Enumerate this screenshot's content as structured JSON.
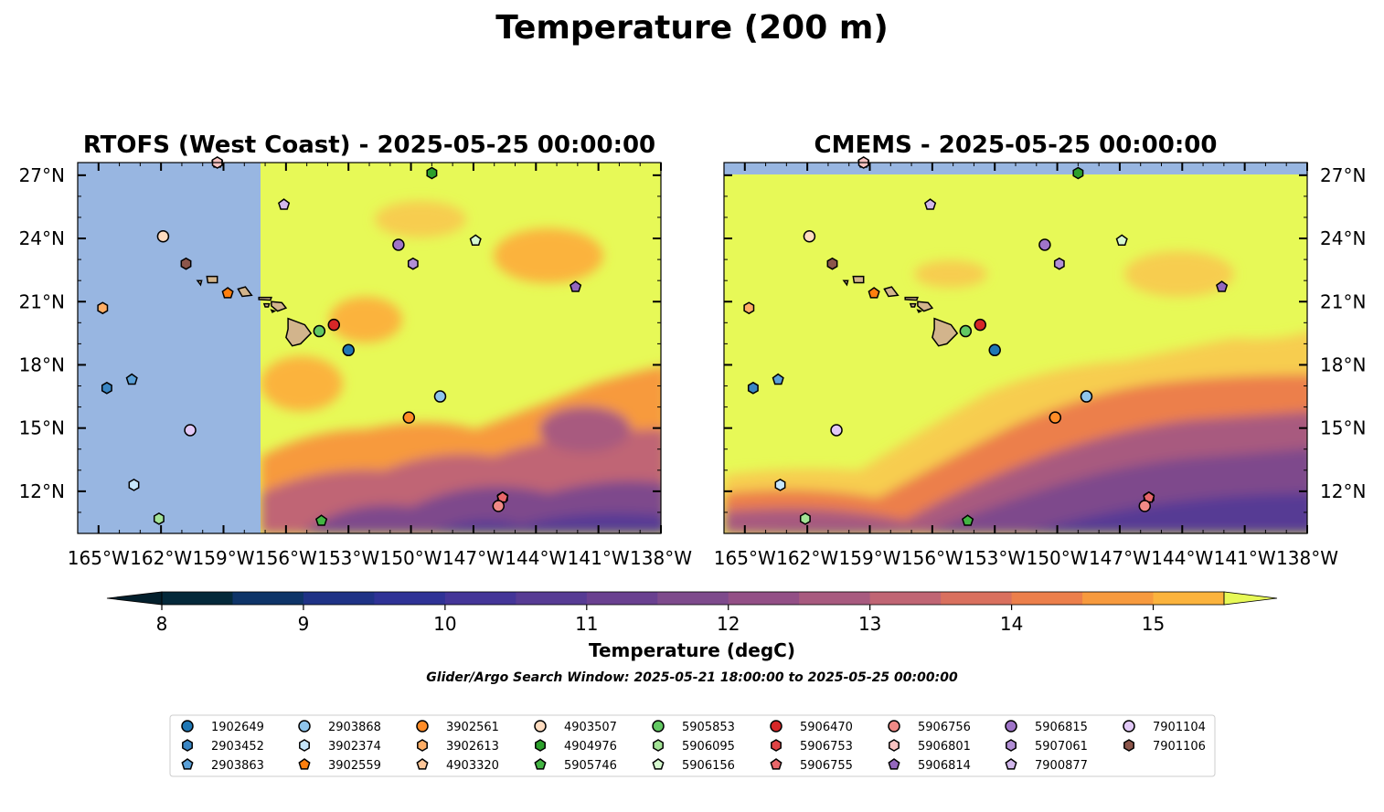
{
  "suptitle": "Temperature (200 m)",
  "colors": {
    "land": "#d2b48c",
    "nodata": "#98b6e1",
    "sea_warm": "#e7f957",
    "frame": "#000000"
  },
  "chart_data": [
    {
      "type": "heatmap",
      "title": "RTOFS (West Coast) - 2025-05-25 00:00:00",
      "model": "RTOFS (West Coast)",
      "time": "2025-05-25 00:00:00",
      "xlim": [
        -166,
        -138
      ],
      "ylim": [
        10,
        27.6
      ],
      "x_tick_values": [
        -165,
        -162,
        -159,
        -156,
        -153,
        -150,
        -147,
        -144,
        -141,
        -138
      ],
      "x_tick_labels": [
        "165°W",
        "162°W",
        "159°W",
        "156°W",
        "153°W",
        "150°W",
        "147°W",
        "144°W",
        "141°W",
        "138°W"
      ],
      "y_tick_values": [
        12,
        15,
        18,
        21,
        24,
        27
      ],
      "y_tick_labels": [
        "12°N",
        "15°N",
        "18°N",
        "21°N",
        "24°N",
        "27°N"
      ],
      "y_labels_side": "left",
      "data_coverage": {
        "no_data_west_of_lon": -157.2
      },
      "field_trend": "warm (>15.5 degC) across the north and centre, cooling toward 10 degC in the southeast corner"
    },
    {
      "type": "heatmap",
      "title": "CMEMS - 2025-05-25 00:00:00",
      "model": "CMEMS",
      "time": "2025-05-25 00:00:00",
      "xlim": [
        -166,
        -138
      ],
      "ylim": [
        10,
        27.6
      ],
      "x_tick_values": [
        -165,
        -162,
        -159,
        -156,
        -153,
        -150,
        -147,
        -144,
        -141,
        -138
      ],
      "x_tick_labels": [
        "165°W",
        "162°W",
        "159°W",
        "156°W",
        "153°W",
        "150°W",
        "147°W",
        "144°W",
        "141°W",
        "138°W"
      ],
      "y_tick_values": [
        12,
        15,
        18,
        21,
        24,
        27
      ],
      "y_tick_labels": [
        "12°N",
        "15°N",
        "18°N",
        "21°N",
        "24°N",
        "27°N"
      ],
      "y_labels_side": "right",
      "data_coverage": {
        "no_data_north_of_lat": 27.1
      },
      "field_trend": "warm (>15.5 degC) north of about 17°N, cold (about 10 degC) band south of about 13°N"
    }
  ],
  "colorbar": {
    "label": "Temperature (degC)",
    "ticks": [
      8,
      9,
      10,
      11,
      12,
      13,
      14,
      15
    ],
    "levels": [
      8,
      8.5,
      9,
      9.5,
      10,
      10.5,
      11,
      11.5,
      12,
      12.5,
      13,
      13.5,
      14,
      14.5,
      15,
      15.5
    ],
    "colors": [
      "#04293a",
      "#0e3468",
      "#1f3286",
      "#2f3296",
      "#443598",
      "#573b94",
      "#6a4090",
      "#7e4a8c",
      "#934f86",
      "#a85a7f",
      "#c06574",
      "#d9705e",
      "#ec7f4b",
      "#f79a3e",
      "#fbb33d",
      "#f7cd4f",
      "#e7f957"
    ],
    "under_color": "#031f2c",
    "over_color": "#e7f957"
  },
  "search_window": "Glider/Argo Search Window: 2025-05-21 18:00:00 to 2025-05-25 00:00:00",
  "platforms": [
    {
      "id": "1902649",
      "marker": "circle",
      "color": "#1f77b4",
      "lon": -153,
      "lat": 18.7
    },
    {
      "id": "2903452",
      "marker": "hexagon",
      "color": "#3a86c4",
      "lon": -164.6,
      "lat": 16.9
    },
    {
      "id": "2903863",
      "marker": "pentagon",
      "color": "#5aa0d8",
      "lon": -163.4,
      "lat": 17.3
    },
    {
      "id": "2903868",
      "marker": "circle",
      "color": "#8fc5ec",
      "lon": -148.6,
      "lat": 16.5
    },
    {
      "id": "3902374",
      "marker": "hexagon",
      "color": "#c6e6fb",
      "lon": -163.3,
      "lat": 12.3
    },
    {
      "id": "3902559",
      "marker": "pentagon",
      "color": "#ff7f0e",
      "lon": -158.8,
      "lat": 21.4
    },
    {
      "id": "3902561",
      "marker": "circle",
      "color": "#ff8c27",
      "lon": -150.1,
      "lat": 15.5
    },
    {
      "id": "3902613",
      "marker": "hexagon",
      "color": "#ffae66",
      "lon": -164.8,
      "lat": 20.7
    },
    {
      "id": "4903320",
      "marker": "pentagon",
      "color": "#ffc799",
      "lon": -159.3,
      "lat": 27.6
    },
    {
      "id": "4903507",
      "marker": "circle",
      "color": "#ffdcc0",
      "lon": -161.9,
      "lat": 24.1
    },
    {
      "id": "4904976",
      "marker": "hexagon",
      "color": "#2ca02c",
      "lon": -149,
      "lat": 27.1
    },
    {
      "id": "5905746",
      "marker": "pentagon",
      "color": "#43b443",
      "lon": -154.3,
      "lat": 10.6
    },
    {
      "id": "5905853",
      "marker": "circle",
      "color": "#62c862",
      "lon": -154.4,
      "lat": 19.6
    },
    {
      "id": "5906095",
      "marker": "hexagon",
      "color": "#a3e396",
      "lon": -162.1,
      "lat": 10.7
    },
    {
      "id": "5906156",
      "marker": "pentagon",
      "color": "#d6f9cf",
      "lon": -146.9,
      "lat": 23.9
    },
    {
      "id": "5906470",
      "marker": "circle",
      "color": "#d62728",
      "lon": -153.7,
      "lat": 19.9
    },
    {
      "id": "5906753",
      "marker": "hexagon",
      "color": "#e04345",
      "lon": -145.6,
      "lat": 11.7
    },
    {
      "id": "5906755",
      "marker": "pentagon",
      "color": "#e8676a",
      "lon": -145.6,
      "lat": 11.7
    },
    {
      "id": "5906756",
      "marker": "circle",
      "color": "#f08a86",
      "lon": -145.8,
      "lat": 11.3
    },
    {
      "id": "5906801",
      "marker": "hexagon",
      "color": "#f9c3c1",
      "lon": -159.3,
      "lat": 27.6
    },
    {
      "id": "5906814",
      "marker": "pentagon",
      "color": "#9467bd",
      "lon": -142.1,
      "lat": 21.7
    },
    {
      "id": "5906815",
      "marker": "circle",
      "color": "#9f74c8",
      "lon": -150.6,
      "lat": 23.7
    },
    {
      "id": "5907061",
      "marker": "hexagon",
      "color": "#b28fd6",
      "lon": -149.9,
      "lat": 22.8
    },
    {
      "id": "7900877",
      "marker": "pentagon",
      "color": "#d2b8ec",
      "lon": -156.1,
      "lat": 25.6
    },
    {
      "id": "7901104",
      "marker": "circle",
      "color": "#e2c9f7",
      "lon": -160.6,
      "lat": 14.9
    },
    {
      "id": "7901106",
      "marker": "hexagon",
      "color": "#8c564b",
      "lon": -160.8,
      "lat": 22.8
    }
  ],
  "legend": {
    "columns": 9,
    "placement": "bottom-center"
  }
}
